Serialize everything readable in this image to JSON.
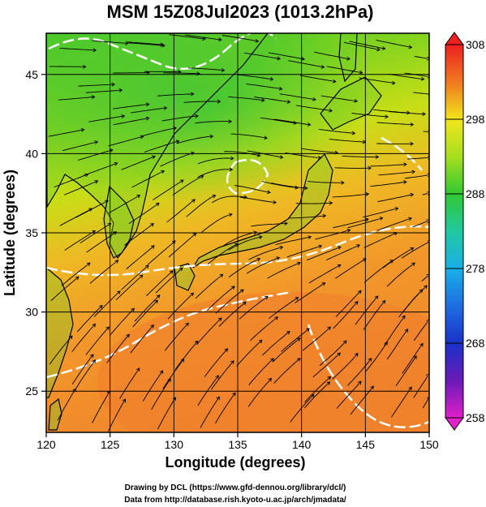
{
  "title": "MSM 15Z08Jul2023 (1013.2hPa)",
  "xlabel": "Longitude (degrees)",
  "ylabel": "Latitude  (degrees)",
  "x_ticks": [
    "120",
    "125",
    "130",
    "135",
    "140",
    "145",
    "150"
  ],
  "y_ticks": [
    "25",
    "30",
    "35",
    "40",
    "45"
  ],
  "colorbar": {
    "ticks": [
      "308",
      "298",
      "288",
      "278",
      "268",
      "258"
    ],
    "min": 258,
    "max": 308
  },
  "credits": [
    "Drawing by DCL (https://www.gfd-dennou.org/library/dcl/)",
    "Data from http://database.rish.kyoto-u.ac.jp/arch/jmadata/"
  ],
  "map": {
    "lon_range": [
      120,
      150
    ],
    "lat_range": [
      22.4,
      47.6
    ],
    "grid_lon": [
      120,
      125,
      130,
      135,
      140,
      145,
      150
    ],
    "grid_lat": [
      25,
      30,
      35,
      40,
      45
    ],
    "field": "temperature (K)",
    "overlay": "streamlines",
    "colors": {
      "warm": "#f08a28",
      "mid": "#d6e11a",
      "cool": "#4ec82a",
      "contour": "#ffffff",
      "coast": "#000000"
    }
  }
}
